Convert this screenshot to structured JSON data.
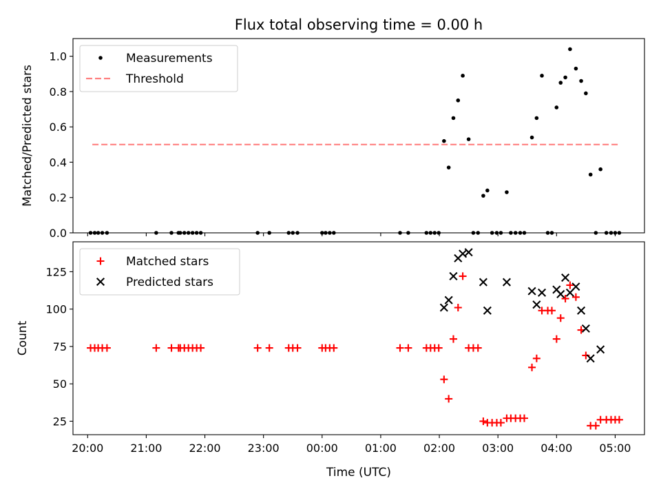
{
  "figure": {
    "title": "Flux total observing time = 0.00 h"
  },
  "chart_data": [
    {
      "type": "scatter",
      "title": "Flux total observing time = 0.00 h",
      "xlabel": "",
      "ylabel": "Matched/Predicted stars",
      "xlim": [
        19.75,
        29.5
      ],
      "ylim": [
        0.0,
        1.1
      ],
      "yticks": [
        0.0,
        0.2,
        0.4,
        0.6,
        0.8,
        1.0
      ],
      "ytick_labels": [
        "0.0",
        "0.2",
        "0.4",
        "0.6",
        "0.8",
        "1.0"
      ],
      "grid": false,
      "legend": "upper left",
      "series": [
        {
          "name": "Measurements",
          "kind": "scatter",
          "marker": "dot",
          "color": "#000000",
          "x": [
            20.05,
            20.12,
            20.18,
            20.25,
            20.33,
            21.17,
            21.43,
            21.55,
            21.58,
            21.65,
            21.72,
            21.79,
            21.86,
            21.93,
            22.9,
            23.1,
            23.43,
            23.5,
            23.58,
            24.0,
            24.06,
            24.13,
            24.2,
            25.33,
            25.47,
            25.78,
            25.85,
            25.92,
            25.99,
            26.08,
            26.16,
            26.24,
            26.32,
            26.4,
            26.5,
            26.58,
            26.66,
            26.75,
            26.82,
            26.9,
            26.98,
            27.05,
            27.15,
            27.22,
            27.3,
            27.38,
            27.45,
            27.58,
            27.66,
            27.75,
            27.85,
            27.92,
            28.0,
            28.07,
            28.15,
            28.23,
            28.33,
            28.42,
            28.5,
            28.58,
            28.67,
            28.75,
            28.85,
            28.93,
            29.0,
            29.07
          ],
          "y": [
            0.0,
            0.0,
            0.0,
            0.0,
            0.0,
            0.0,
            0.0,
            0.0,
            0.0,
            0.0,
            0.0,
            0.0,
            0.0,
            0.0,
            0.0,
            0.0,
            0.0,
            0.0,
            0.0,
            0.0,
            0.0,
            0.0,
            0.0,
            0.0,
            0.0,
            0.0,
            0.0,
            0.0,
            0.0,
            0.52,
            0.37,
            0.65,
            0.75,
            0.89,
            0.53,
            0.0,
            0.0,
            0.21,
            0.24,
            0.0,
            0.0,
            0.0,
            0.23,
            0.0,
            0.0,
            0.0,
            0.0,
            0.54,
            0.65,
            0.89,
            0.0,
            0.0,
            0.71,
            0.85,
            0.88,
            1.04,
            0.93,
            0.86,
            0.79,
            0.33,
            0.0,
            0.36,
            0.0,
            0.0,
            0.0,
            0.0
          ]
        },
        {
          "name": "Threshold",
          "kind": "line",
          "style": "dashed",
          "color": "#ff8080",
          "x": [
            20.08,
            29.08
          ],
          "y": [
            0.5,
            0.5
          ]
        }
      ]
    },
    {
      "type": "scatter",
      "xlabel": "Time (UTC)",
      "ylabel": "Count",
      "xlim": [
        19.75,
        29.5
      ],
      "ylim": [
        16,
        145
      ],
      "xticks": [
        20,
        21,
        22,
        23,
        24,
        25,
        26,
        27,
        28,
        29
      ],
      "xtick_labels": [
        "20:00",
        "21:00",
        "22:00",
        "23:00",
        "00:00",
        "01:00",
        "02:00",
        "03:00",
        "04:00",
        "05:00"
      ],
      "yticks": [
        25,
        50,
        75,
        100,
        125
      ],
      "ytick_labels": [
        "25",
        "50",
        "75",
        "100",
        "125"
      ],
      "grid": false,
      "legend": "upper left",
      "series": [
        {
          "name": "Matched stars",
          "kind": "scatter",
          "marker": "plus",
          "color": "#ff0000",
          "x": [
            20.05,
            20.12,
            20.18,
            20.25,
            20.33,
            21.17,
            21.43,
            21.55,
            21.58,
            21.65,
            21.72,
            21.79,
            21.86,
            21.93,
            22.9,
            23.1,
            23.43,
            23.5,
            23.58,
            24.0,
            24.06,
            24.13,
            24.2,
            25.33,
            25.47,
            25.78,
            25.85,
            25.92,
            25.99,
            26.08,
            26.16,
            26.24,
            26.32,
            26.4,
            26.5,
            26.58,
            26.66,
            26.75,
            26.82,
            26.9,
            26.98,
            27.05,
            27.15,
            27.22,
            27.3,
            27.38,
            27.45,
            27.58,
            27.66,
            27.75,
            27.85,
            27.92,
            28.0,
            28.07,
            28.15,
            28.23,
            28.33,
            28.42,
            28.5,
            28.58,
            28.67,
            28.75,
            28.85,
            28.93,
            29.0,
            29.07
          ],
          "y": [
            74,
            74,
            74,
            74,
            74,
            74,
            74,
            74,
            74,
            74,
            74,
            74,
            74,
            74,
            74,
            74,
            74,
            74,
            74,
            74,
            74,
            74,
            74,
            74,
            74,
            74,
            74,
            74,
            74,
            53,
            40,
            80,
            101,
            122,
            74,
            74,
            74,
            25,
            24,
            24,
            24,
            24,
            27,
            27,
            27,
            27,
            27,
            61,
            67,
            99,
            99,
            99,
            80,
            94,
            107,
            116,
            108,
            86,
            69,
            22,
            22,
            26,
            26,
            26,
            26,
            26
          ]
        },
        {
          "name": "Predicted stars",
          "kind": "scatter",
          "marker": "x",
          "color": "#000000",
          "x": [
            26.08,
            26.16,
            26.24,
            26.32,
            26.4,
            26.5,
            26.75,
            26.82,
            27.15,
            27.58,
            27.66,
            27.75,
            28.0,
            28.07,
            28.15,
            28.23,
            28.33,
            28.42,
            28.5,
            28.58,
            28.75
          ],
          "y": [
            101,
            106,
            122,
            134,
            137,
            138,
            118,
            99,
            118,
            112,
            103,
            111,
            113,
            110,
            121,
            111,
            115,
            99,
            87,
            67,
            73
          ]
        }
      ]
    }
  ]
}
